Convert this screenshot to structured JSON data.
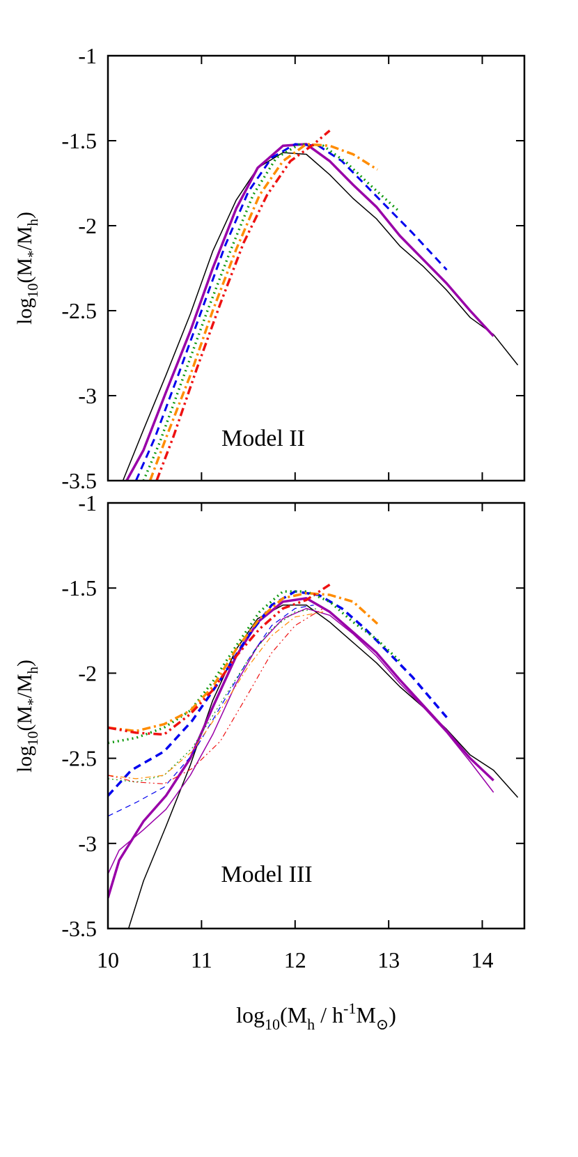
{
  "figure": {
    "xlabel": "log10(Mh / h-1M⊙)",
    "xlabel_parts": {
      "base": "log",
      "base_sub": "10",
      "open": "(M",
      "h_sub": "h",
      "mid": " / h",
      "sup": "-1",
      "m": "M",
      "sun_sub": "⊙",
      "close": ")"
    },
    "ylabel_parts": {
      "base": "log",
      "base_sub": "10",
      "open": "(M",
      "star_sub": "*",
      "slash": "/M",
      "h_sub": "h",
      "close": ")"
    }
  },
  "chart_data": [
    {
      "type": "line",
      "title": "Model II",
      "xlabel": "log10(Mh / h-1M⊙)",
      "ylabel": "log10(M*/Mh)",
      "xlim": [
        10,
        14.45
      ],
      "ylim": [
        -3.5,
        -1
      ],
      "xticks": [
        10,
        11,
        12,
        13,
        14
      ],
      "xtick_labels": [
        "10",
        "11",
        "12",
        "13",
        "14"
      ],
      "yticks": [
        -1,
        -1.5,
        -2,
        -2.5,
        -3,
        -3.5
      ],
      "ytick_labels": [
        "-1",
        "-1.5",
        "-2",
        "-2.5",
        "-3",
        "-3.5"
      ],
      "show_xtick_labels": false,
      "series": [
        {
          "name": "black-thin",
          "color": "#000000",
          "width": 1.5,
          "dash": "",
          "x": [
            10.16,
            10.38,
            10.62,
            10.88,
            11.12,
            11.37,
            11.6,
            11.87,
            12.12,
            12.37,
            12.62,
            12.87,
            13.12,
            13.37,
            13.62,
            13.87,
            14.12,
            14.38
          ],
          "y": [
            -3.5,
            -3.2,
            -2.88,
            -2.52,
            -2.15,
            -1.85,
            -1.66,
            -1.57,
            -1.58,
            -1.7,
            -1.84,
            -1.96,
            -2.12,
            -2.24,
            -2.38,
            -2.54,
            -2.64,
            -2.82
          ]
        },
        {
          "name": "purple",
          "color": "#9900a8",
          "width": 3.5,
          "dash": "",
          "x": [
            10.2,
            10.38,
            10.62,
            10.88,
            11.12,
            11.37,
            11.6,
            11.87,
            12.12,
            12.37,
            12.62,
            12.87,
            13.12,
            13.37,
            13.62,
            13.87,
            14.12
          ],
          "y": [
            -3.5,
            -3.32,
            -2.98,
            -2.62,
            -2.25,
            -1.9,
            -1.66,
            -1.53,
            -1.52,
            -1.62,
            -1.76,
            -1.89,
            -2.06,
            -2.2,
            -2.34,
            -2.5,
            -2.65
          ]
        },
        {
          "name": "blue",
          "color": "#0000ee",
          "width": 3,
          "dash": "11,7",
          "x": [
            10.3,
            10.5,
            10.75,
            11.0,
            11.25,
            11.5,
            11.75,
            12.0,
            12.25,
            12.5,
            12.75,
            13.0,
            13.25,
            13.62
          ],
          "y": [
            -3.5,
            -3.25,
            -2.88,
            -2.5,
            -2.12,
            -1.8,
            -1.6,
            -1.52,
            -1.53,
            -1.62,
            -1.76,
            -1.9,
            -2.04,
            -2.26
          ]
        },
        {
          "name": "green",
          "color": "#109a10",
          "width": 3.5,
          "dash": "2,5",
          "x": [
            10.38,
            10.55,
            10.8,
            11.05,
            11.3,
            11.55,
            11.8,
            12.05,
            12.3,
            12.55,
            12.8,
            13.12
          ],
          "y": [
            -3.5,
            -3.28,
            -2.9,
            -2.52,
            -2.16,
            -1.82,
            -1.6,
            -1.52,
            -1.53,
            -1.63,
            -1.76,
            -1.92
          ]
        },
        {
          "name": "orange",
          "color": "#ff8c00",
          "width": 3.5,
          "dash": "12,5,3,5",
          "x": [
            10.45,
            10.62,
            10.88,
            11.12,
            11.37,
            11.62,
            11.87,
            12.12,
            12.37,
            12.62,
            12.88
          ],
          "y": [
            -3.5,
            -3.25,
            -2.88,
            -2.5,
            -2.14,
            -1.82,
            -1.62,
            -1.52,
            -1.53,
            -1.58,
            -1.67
          ]
        },
        {
          "name": "red",
          "color": "#ee1111",
          "width": 3.5,
          "dash": "12,5,3,5,3,5",
          "x": [
            10.52,
            10.7,
            10.95,
            11.2,
            11.45,
            11.7,
            11.95,
            12.2,
            12.37
          ],
          "y": [
            -3.5,
            -3.24,
            -2.84,
            -2.46,
            -2.1,
            -1.82,
            -1.62,
            -1.52,
            -1.44
          ]
        }
      ]
    },
    {
      "type": "line",
      "title": "Model III",
      "xlabel": "log10(Mh / h-1M⊙)",
      "ylabel": "log10(M*/Mh)",
      "xlim": [
        10,
        14.45
      ],
      "ylim": [
        -3.5,
        -1
      ],
      "xticks": [
        10,
        11,
        12,
        13,
        14
      ],
      "xtick_labels": [
        "10",
        "11",
        "12",
        "13",
        "14"
      ],
      "yticks": [
        -1,
        -1.5,
        -2,
        -2.5,
        -3,
        -3.5
      ],
      "ytick_labels": [
        "-1",
        "-1.5",
        "-2",
        "-2.5",
        "-3",
        "-3.5"
      ],
      "show_xtick_labels": true,
      "series": [
        {
          "name": "black-thin",
          "color": "#000000",
          "width": 1.5,
          "dash": "",
          "x": [
            10.22,
            10.38,
            10.62,
            10.88,
            11.12,
            11.37,
            11.6,
            11.87,
            12.12,
            12.37,
            12.62,
            12.87,
            13.12,
            13.37,
            13.62,
            13.87,
            14.12,
            14.38
          ],
          "y": [
            -3.5,
            -3.22,
            -2.9,
            -2.54,
            -2.16,
            -1.86,
            -1.68,
            -1.6,
            -1.6,
            -1.7,
            -1.82,
            -1.94,
            -2.08,
            -2.2,
            -2.33,
            -2.48,
            -2.57,
            -2.73
          ]
        },
        {
          "name": "purple-thick",
          "color": "#9900a8",
          "width": 3.5,
          "dash": "",
          "x": [
            10.0,
            10.12,
            10.38,
            10.62,
            10.88,
            11.12,
            11.37,
            11.6,
            11.87,
            12.12,
            12.37,
            12.62,
            12.87,
            13.12,
            13.37,
            13.62,
            13.87,
            14.12
          ],
          "y": [
            -3.32,
            -3.1,
            -2.87,
            -2.72,
            -2.5,
            -2.2,
            -1.9,
            -1.7,
            -1.58,
            -1.56,
            -1.64,
            -1.76,
            -1.88,
            -2.04,
            -2.19,
            -2.34,
            -2.5,
            -2.63
          ]
        },
        {
          "name": "purple-thin",
          "color": "#9900a8",
          "width": 1.5,
          "dash": "",
          "x": [
            10.0,
            10.12,
            10.38,
            10.62,
            10.88,
            11.12,
            11.37,
            11.6,
            11.87,
            12.12,
            12.37,
            12.62,
            12.87,
            13.12,
            13.37,
            13.62,
            13.87,
            14.12
          ],
          "y": [
            -3.18,
            -3.04,
            -2.92,
            -2.8,
            -2.6,
            -2.36,
            -2.06,
            -1.84,
            -1.68,
            -1.62,
            -1.66,
            -1.77,
            -1.9,
            -2.06,
            -2.2,
            -2.35,
            -2.52,
            -2.7
          ]
        },
        {
          "name": "blue-thick",
          "color": "#0000ee",
          "width": 3.5,
          "dash": "11,7",
          "x": [
            10.0,
            10.25,
            10.6,
            10.9,
            11.2,
            11.5,
            11.75,
            12.0,
            12.25,
            12.5,
            12.75,
            13.0,
            13.25,
            13.62
          ],
          "y": [
            -2.72,
            -2.57,
            -2.46,
            -2.28,
            -2.04,
            -1.78,
            -1.6,
            -1.52,
            -1.54,
            -1.62,
            -1.74,
            -1.88,
            -2.02,
            -2.26
          ]
        },
        {
          "name": "blue-thin",
          "color": "#0000ee",
          "width": 1.2,
          "dash": "8,6",
          "x": [
            10.0,
            10.3,
            10.6,
            10.9,
            11.2,
            11.5,
            11.75,
            12.0,
            12.2
          ],
          "y": [
            -2.84,
            -2.76,
            -2.67,
            -2.48,
            -2.2,
            -1.92,
            -1.72,
            -1.62,
            -1.6
          ]
        },
        {
          "name": "green-thick",
          "color": "#109a10",
          "width": 3.5,
          "dash": "2,5",
          "x": [
            10.0,
            10.3,
            10.6,
            10.88,
            11.12,
            11.37,
            11.62,
            11.87,
            12.12,
            12.37,
            12.62,
            12.87,
            13.12
          ],
          "y": [
            -2.41,
            -2.38,
            -2.32,
            -2.22,
            -2.05,
            -1.84,
            -1.64,
            -1.52,
            -1.52,
            -1.58,
            -1.7,
            -1.8,
            -1.93
          ]
        },
        {
          "name": "green-thin",
          "color": "#109a10",
          "width": 1.2,
          "dash": "2,4",
          "x": [
            10.0,
            10.3,
            10.6,
            10.9,
            11.2,
            11.5,
            11.75,
            12.0,
            12.25
          ],
          "y": [
            -2.62,
            -2.64,
            -2.6,
            -2.44,
            -2.18,
            -1.92,
            -1.74,
            -1.64,
            -1.62
          ]
        },
        {
          "name": "orange-thick",
          "color": "#ff8c00",
          "width": 3.5,
          "dash": "12,5,3,5",
          "x": [
            10.0,
            10.3,
            10.6,
            10.88,
            11.12,
            11.37,
            11.62,
            11.87,
            12.12,
            12.37,
            12.62,
            12.88
          ],
          "y": [
            -2.32,
            -2.34,
            -2.3,
            -2.22,
            -2.08,
            -1.86,
            -1.68,
            -1.56,
            -1.53,
            -1.54,
            -1.58,
            -1.71
          ]
        },
        {
          "name": "orange-thin",
          "color": "#ff8c00",
          "width": 1.2,
          "dash": "8,4,2,4",
          "x": [
            10.0,
            10.3,
            10.6,
            10.9,
            11.2,
            11.5,
            11.75,
            12.0,
            12.3
          ],
          "y": [
            -2.6,
            -2.62,
            -2.6,
            -2.46,
            -2.22,
            -1.96,
            -1.78,
            -1.67,
            -1.64
          ]
        },
        {
          "name": "red-thick",
          "color": "#ee1111",
          "width": 3.5,
          "dash": "12,5,3,5,3,5",
          "x": [
            10.0,
            10.3,
            10.6,
            10.88,
            11.12,
            11.37,
            11.62,
            11.87,
            12.12,
            12.37
          ],
          "y": [
            -2.32,
            -2.35,
            -2.36,
            -2.24,
            -2.1,
            -1.9,
            -1.74,
            -1.62,
            -1.57,
            -1.48
          ]
        },
        {
          "name": "red-thin",
          "color": "#ee1111",
          "width": 1.2,
          "dash": "8,4,2,4,2,4",
          "x": [
            10.0,
            10.3,
            10.6,
            10.9,
            11.2,
            11.5,
            11.75,
            12.0,
            12.3
          ],
          "y": [
            -2.6,
            -2.64,
            -2.65,
            -2.56,
            -2.4,
            -2.12,
            -1.88,
            -1.72,
            -1.62
          ]
        }
      ]
    }
  ]
}
